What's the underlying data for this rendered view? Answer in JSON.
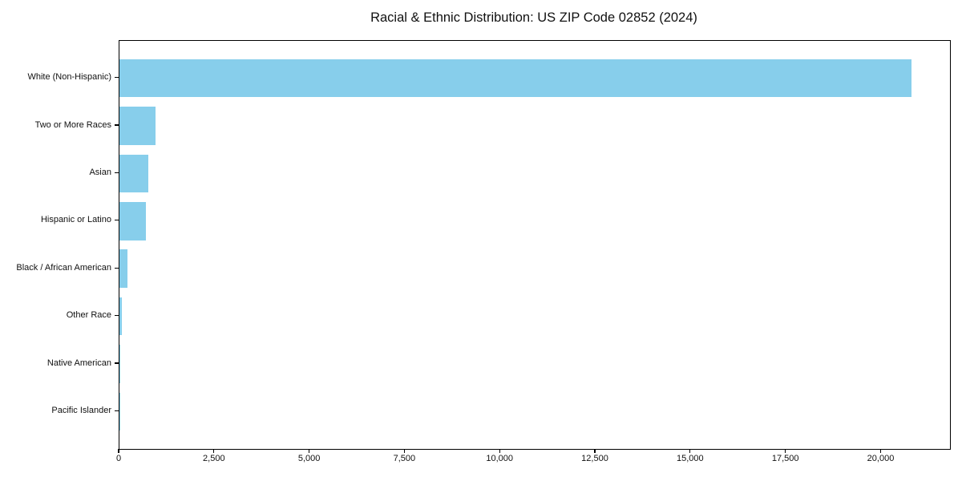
{
  "chart_data": {
    "type": "bar",
    "orientation": "horizontal",
    "title": "Racial & Ethnic Distribution: US ZIP Code 02852 (2024)",
    "xlabel": "",
    "ylabel": "",
    "categories": [
      "White (Non-Hispanic)",
      "Two or More Races",
      "Asian",
      "Hispanic or Latino",
      "Black / African American",
      "Other Race",
      "Native American",
      "Pacific Islander"
    ],
    "values": [
      20800,
      940,
      750,
      690,
      200,
      65,
      30,
      5
    ],
    "xlim": [
      0,
      21800
    ],
    "x_ticks": [
      0,
      2500,
      5000,
      7500,
      10000,
      12500,
      15000,
      17500,
      20000
    ],
    "x_tick_labels": [
      "0",
      "2,500",
      "5,000",
      "7,500",
      "10,000",
      "12,500",
      "15,000",
      "17,500",
      "20,000"
    ],
    "bar_color": "#87CEEB",
    "spine_color": "#000000",
    "text_color": "#111111",
    "grid": false,
    "legend": false,
    "first_category_position": "top"
  }
}
